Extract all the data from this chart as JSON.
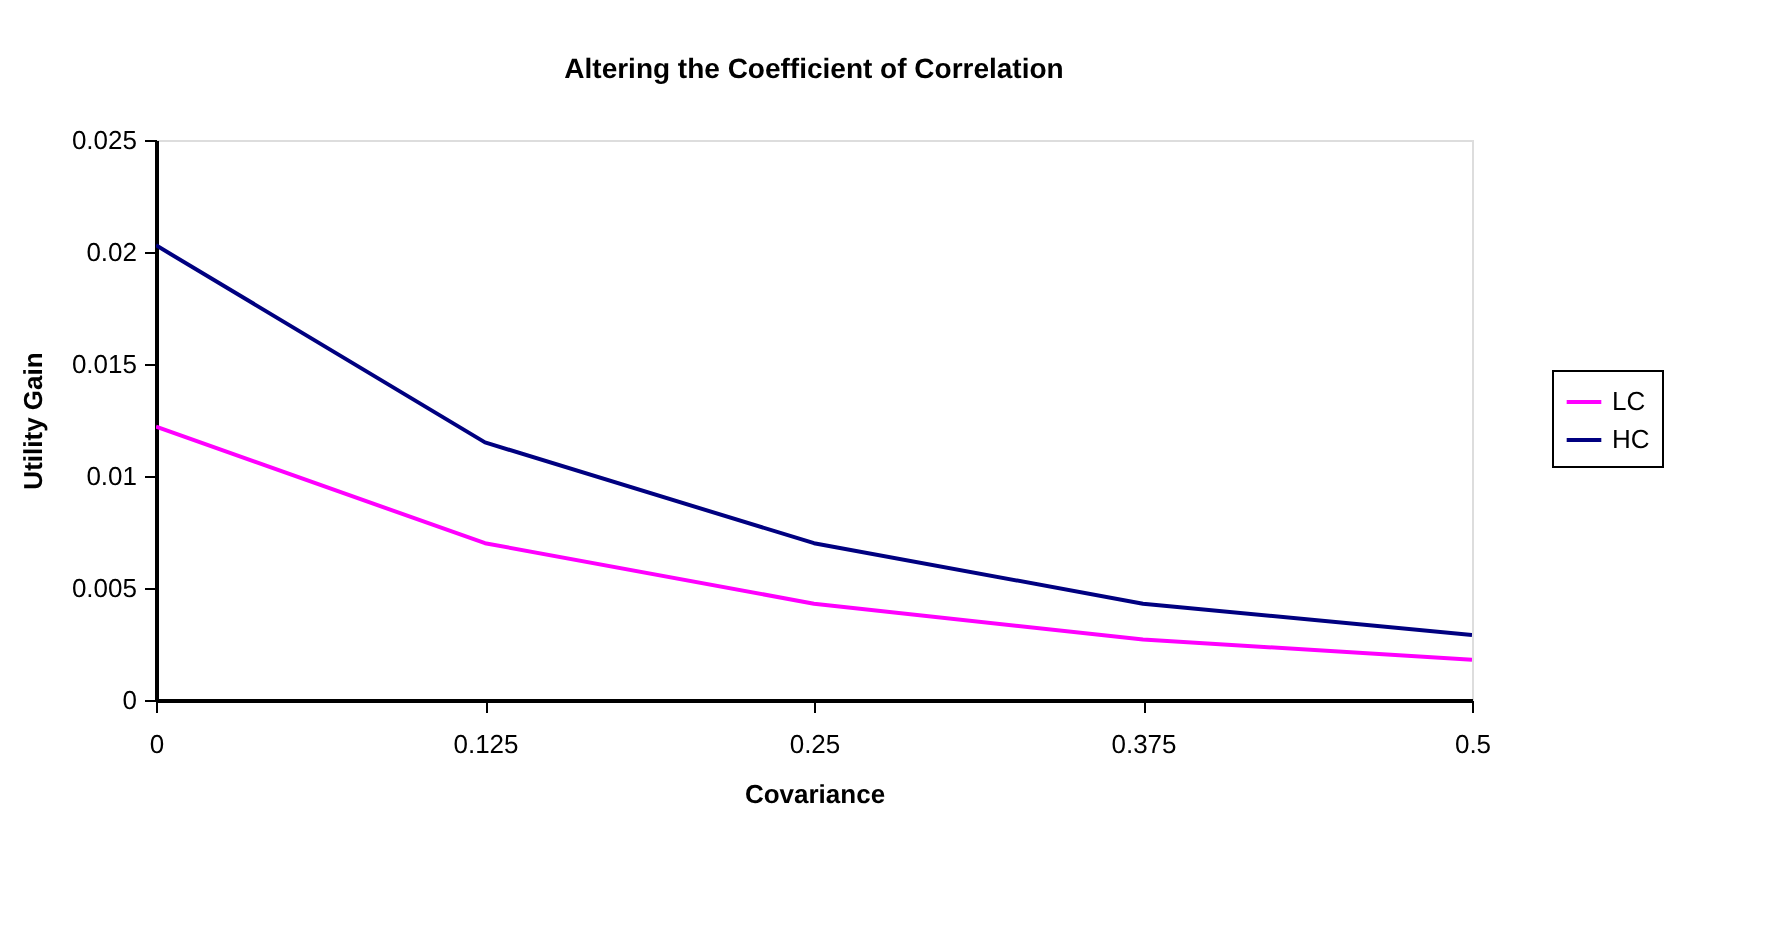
{
  "chart_data": {
    "type": "line",
    "title": "Altering the Coefficient of Correlation",
    "xlabel": "Covariance",
    "ylabel": "Utility Gain",
    "x": [
      0,
      0.125,
      0.25,
      0.375,
      0.5
    ],
    "series": [
      {
        "name": "LC",
        "color": "#ff00ff",
        "values": [
          0.0122,
          0.007,
          0.0043,
          0.0027,
          0.0018
        ]
      },
      {
        "name": "HC",
        "color": "#000080",
        "values": [
          0.0203,
          0.0115,
          0.007,
          0.0043,
          0.0029
        ]
      }
    ],
    "xlim": [
      0,
      0.5
    ],
    "xticks": [
      0,
      0.125,
      0.25,
      0.375,
      0.5
    ],
    "ylim": [
      0,
      0.025
    ],
    "yticks": [
      0,
      0.005,
      0.01,
      0.015,
      0.02,
      0.025
    ],
    "grid": false,
    "legend": "right",
    "marker": "none",
    "line_style": "solid"
  }
}
